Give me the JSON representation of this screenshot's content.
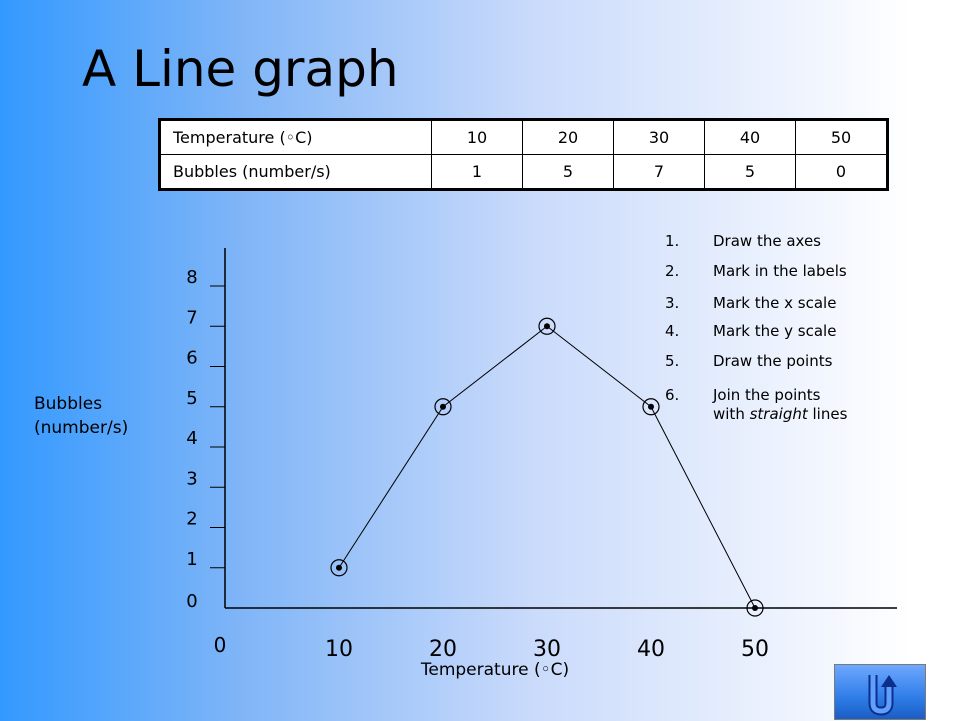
{
  "title": "A Line graph",
  "table": {
    "row1_header": "Temperature (◦C)",
    "row2_header": "Bubbles (number/s)",
    "temperatures": [
      "10",
      "20",
      "30",
      "40",
      "50"
    ],
    "bubbles": [
      "1",
      "5",
      "7",
      "5",
      "0"
    ]
  },
  "steps": [
    {
      "num": "1.",
      "text": "Draw the axes"
    },
    {
      "num": "2.",
      "text": "Mark in the labels"
    },
    {
      "num": "3.",
      "text": "Mark the x scale"
    },
    {
      "num": "4.",
      "text": "Mark the y scale"
    },
    {
      "num": "5.",
      "text": "Draw the points"
    },
    {
      "num": "6.",
      "text_line1": "Join the points",
      "text_line2_pre": "with ",
      "text_line2_em": "straight",
      "text_line2_post": " lines"
    }
  ],
  "chart_data": {
    "type": "line",
    "xlabel": "Temperature (◦C)",
    "ylabel_line1": "Bubbles",
    "ylabel_line2": "(number/s)",
    "x_ticks": [
      "0",
      "10",
      "20",
      "30",
      "40",
      "50"
    ],
    "y_ticks": [
      "0",
      "1",
      "2",
      "3",
      "4",
      "5",
      "6",
      "7",
      "8"
    ],
    "xlim": [
      0,
      50
    ],
    "ylim": [
      0,
      8
    ],
    "x": [
      10,
      20,
      30,
      40,
      50
    ],
    "y": [
      1,
      5,
      7,
      5,
      0
    ],
    "grid": false,
    "line_color": "#000000"
  },
  "nav": {
    "home_icon": "u-turn-arrow-icon"
  }
}
